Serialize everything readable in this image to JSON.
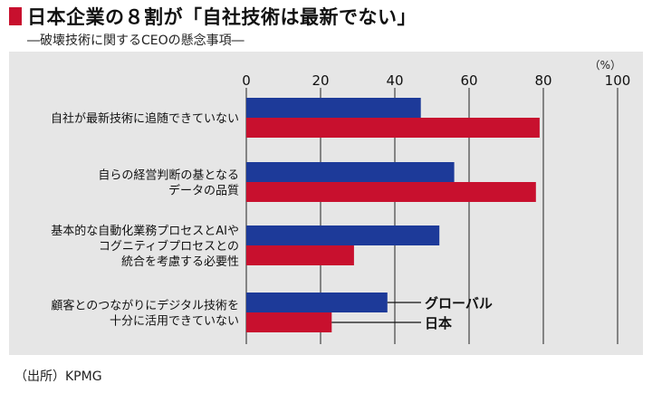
{
  "title": "日本企業の８割が「自社技術は最新でない」",
  "subtitle": "―破壊技術に関するCEOの懸念事項―",
  "source": "（出所）KPMG",
  "colors": {
    "series_global": "#1d3a99",
    "series_japan": "#c8102e",
    "background": "#e6e6e6",
    "accent": "#c8102e"
  },
  "chart_data": {
    "type": "bar",
    "orientation": "horizontal",
    "unit_label": "（%）",
    "xlim": [
      0,
      100
    ],
    "ticks": [
      0,
      20,
      40,
      60,
      80,
      100
    ],
    "grid": true,
    "categories": [
      [
        "自社が最新技術に追随できていない"
      ],
      [
        "自らの経営判断の基となる",
        "データの品質"
      ],
      [
        "基本的な自動化業務プロセスとAIや",
        "コグニティブプロセスとの",
        "統合を考慮する必要性"
      ],
      [
        "顧客とのつながりにデジタル技術を",
        "十分に活用できていない"
      ]
    ],
    "series": [
      {
        "name": "グローバル",
        "values": [
          47,
          56,
          52,
          38
        ]
      },
      {
        "name": "日本",
        "values": [
          79,
          78,
          29,
          23
        ]
      }
    ],
    "legend_placement": "inline, beside last category"
  }
}
